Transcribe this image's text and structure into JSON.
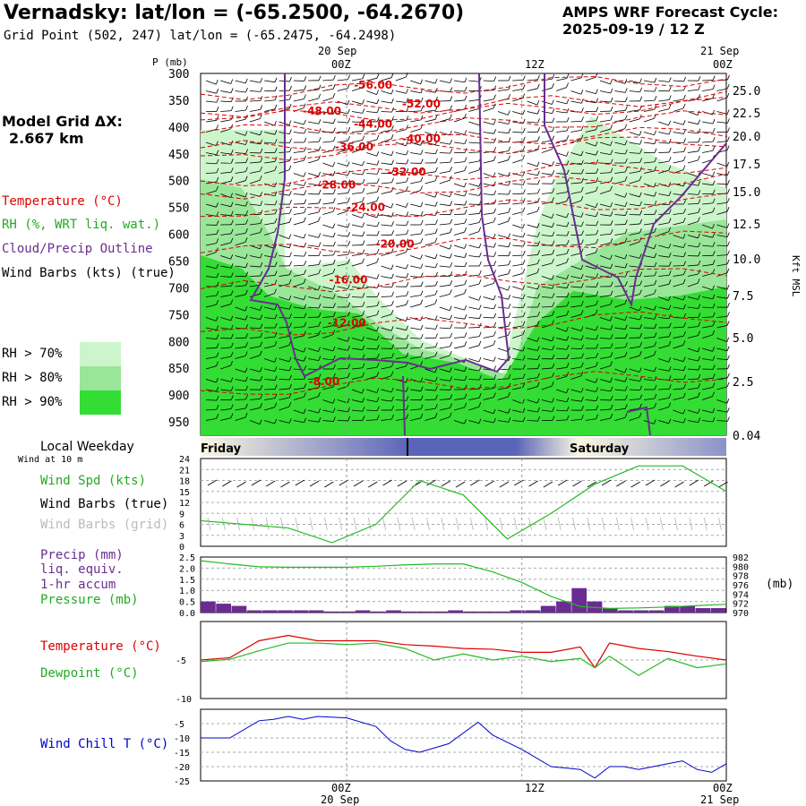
{
  "header": {
    "title": "Vernadsky:  lat/lon = (-65.2500, -64.2670)",
    "subtitle": "Grid Point (502, 247) lat/lon = (-65.2475, -64.2498)",
    "cycle_line1": "AMPS WRF Forecast Cycle:",
    "cycle_line2": "2025-09-19 / 12  Z"
  },
  "model_grid": {
    "label": "Model Grid ΔX:",
    "value": "2.667 km"
  },
  "legend": {
    "temperature": "Temperature (°C)",
    "rh": "RH (%, WRT liq. wat.)",
    "cloud": "Cloud/Precip Outline",
    "wind": "Wind Barbs (kts) (true)",
    "rh70": "RH > 70%",
    "rh80": "RH > 80%",
    "rh90": "RH > 90%"
  },
  "colors": {
    "rh70": "#ccf5cc",
    "rh80": "#99e699",
    "rh90": "#33dd33",
    "temperature": "#dd0000",
    "cloud": "#6a2c91",
    "pressure_line": "#22bb22",
    "precip": "#6a2c91",
    "windchill": "#0000cc"
  },
  "time_axis": {
    "top_date_left": "20 Sep",
    "top_date_right": "21 Sep",
    "ticks": [
      "00Z",
      "12Z",
      "00Z"
    ],
    "bottom_date_left": "20 Sep",
    "bottom_date_right": "21 Sep"
  },
  "weekday": {
    "title": "Local Weekday",
    "day1": "Friday",
    "day2": "Saturday"
  },
  "panels": {
    "wind_at": "Wind at 10 m",
    "wind_spd": "Wind Spd (kts)",
    "wind_barbs_true": "Wind Barbs (true)",
    "wind_barbs_grid": "Wind Barbs (grid)",
    "precip": "Precip (mm)",
    "liq": "liq. equiv.",
    "accum": "1-hr accum",
    "pressure": "Pressure (mb)",
    "mb": "(mb)",
    "temperature": "Temperature (°C)",
    "dewpoint": "Dewpoint (°C)",
    "windchill": "Wind Chill T (°C)"
  },
  "chart_data": [
    {
      "type": "heatmap",
      "title": "",
      "ylabel": "P (mb)",
      "ylabel_right": "Kft MSL",
      "pressure_levels": [
        300,
        350,
        400,
        450,
        500,
        550,
        600,
        650,
        700,
        750,
        800,
        850,
        900,
        950
      ],
      "height_ticks": [
        "25.0",
        "22.5",
        "20.0",
        "17.5",
        "15.0",
        "12.5",
        "10.0",
        "7.5",
        "5.0",
        "2.5",
        "0.04"
      ],
      "temperature_contour_labels": [
        {
          "label": "-56.00",
          "t": 10.5,
          "p": 322
        },
        {
          "label": "-52.00",
          "t": 13.8,
          "p": 357
        },
        {
          "label": "-48.00",
          "t": 7.0,
          "p": 370
        },
        {
          "label": "-44.00",
          "t": 10.5,
          "p": 394
        },
        {
          "label": "-40.00",
          "t": 13.8,
          "p": 422
        },
        {
          "label": "-36.00",
          "t": 9.2,
          "p": 437
        },
        {
          "label": "-32.00",
          "t": 12.8,
          "p": 484
        },
        {
          "label": "-28.00",
          "t": 8.0,
          "p": 508
        },
        {
          "label": "-24.00",
          "t": 10.0,
          "p": 550
        },
        {
          "label": "-20.00",
          "t": 12.0,
          "p": 618
        },
        {
          "label": "-16.00",
          "t": 8.8,
          "p": 685
        },
        {
          "label": "-12.00",
          "t": 8.7,
          "p": 765
        },
        {
          "label": "-8.00",
          "t": 7.4,
          "p": 875
        }
      ]
    },
    {
      "type": "line",
      "title": "Wind at 10 m",
      "ylim": [
        0,
        24
      ],
      "yticks": [
        0,
        3,
        6,
        9,
        12,
        15,
        18,
        21,
        24
      ],
      "x_hours": [
        0,
        3,
        6,
        9,
        12,
        15,
        18,
        21,
        24,
        27,
        30,
        33,
        36
      ],
      "series": [
        {
          "name": "Wind Spd (kts)",
          "values": [
            7,
            6,
            5,
            1,
            6,
            18,
            14,
            2,
            9,
            17,
            22,
            22,
            15
          ]
        }
      ]
    },
    {
      "type": "bar",
      "title": "",
      "ylim": [
        0,
        2.5
      ],
      "yticks": [
        "0.0",
        "0.5",
        "1.0",
        "1.5",
        "2.0",
        "2.5"
      ],
      "pressure_ticks": [
        "970",
        "972",
        "974",
        "976",
        "978",
        "980",
        "982"
      ],
      "precip_mm": [
        0.5,
        0.4,
        0.3,
        0.1,
        0.1,
        0.1,
        0.1,
        0.1,
        0.05,
        0.05,
        0.1,
        0.05,
        0.1,
        0.05,
        0.05,
        0.05,
        0.1,
        0.05,
        0.05,
        0.05,
        0.1,
        0.1,
        0.3,
        0.5,
        1.1,
        0.5,
        0.2,
        0.1,
        0.1,
        0.1,
        0.3,
        0.3,
        0.2,
        0.2
      ],
      "series": [
        {
          "name": "Pressure (mb)",
          "x_hours": [
            0,
            2,
            4,
            6,
            8,
            10,
            12,
            14,
            16,
            18,
            20,
            22,
            24,
            26,
            28,
            30,
            32,
            34,
            36
          ],
          "values": [
            981.2,
            980.5,
            979.9,
            979.8,
            979.8,
            979.8,
            980.0,
            980.3,
            980.5,
            980.5,
            978.8,
            976.5,
            973.5,
            971.3,
            970.9,
            971.0,
            971.2,
            971.5,
            971.8
          ]
        }
      ]
    },
    {
      "type": "line",
      "title": "",
      "ylim": [
        -10,
        0
      ],
      "yticks": [
        -5,
        -10
      ],
      "x_hours": [
        0,
        2,
        4,
        6,
        8,
        10,
        12,
        14,
        16,
        18,
        20,
        22,
        24,
        26,
        27,
        28,
        30,
        32,
        34,
        36
      ],
      "series": [
        {
          "name": "Temperature (°C)",
          "values": [
            -5,
            -4.7,
            -2.5,
            -1.8,
            -2.5,
            -2.5,
            -2.5,
            -3.0,
            -3.2,
            -3.5,
            -3.6,
            -4.0,
            -4.0,
            -3.3,
            -6.0,
            -2.8,
            -3.5,
            -3.9,
            -4.5,
            -5.0
          ]
        },
        {
          "name": "Dewpoint (°C)",
          "values": [
            -5.2,
            -4.9,
            -3.8,
            -2.8,
            -2.8,
            -3.0,
            -2.8,
            -3.5,
            -5.0,
            -4.2,
            -5.0,
            -4.5,
            -5.2,
            -4.8,
            -6.0,
            -4.5,
            -7.0,
            -4.8,
            -6.0,
            -5.5
          ]
        }
      ]
    },
    {
      "type": "line",
      "title": "",
      "ylim": [
        -25,
        0
      ],
      "yticks": [
        -5,
        -10,
        -15,
        -20,
        -25
      ],
      "x_hours": [
        0,
        2,
        4,
        5,
        6,
        7,
        8,
        10,
        12,
        13,
        14,
        15,
        17,
        19,
        20,
        22,
        24,
        26,
        27,
        28,
        29,
        30,
        31,
        32,
        33,
        34,
        35,
        36
      ],
      "series": [
        {
          "name": "Wind Chill T (°C)",
          "values": [
            -10,
            -10,
            -4,
            -3.5,
            -2.5,
            -3.5,
            -2.5,
            -3,
            -6,
            -11,
            -14,
            -15,
            -12,
            -4.5,
            -9,
            -14,
            -20,
            -21,
            -24,
            -20,
            -20,
            -21,
            -20,
            -19,
            -18,
            -21,
            -22,
            -19
          ]
        }
      ]
    }
  ]
}
